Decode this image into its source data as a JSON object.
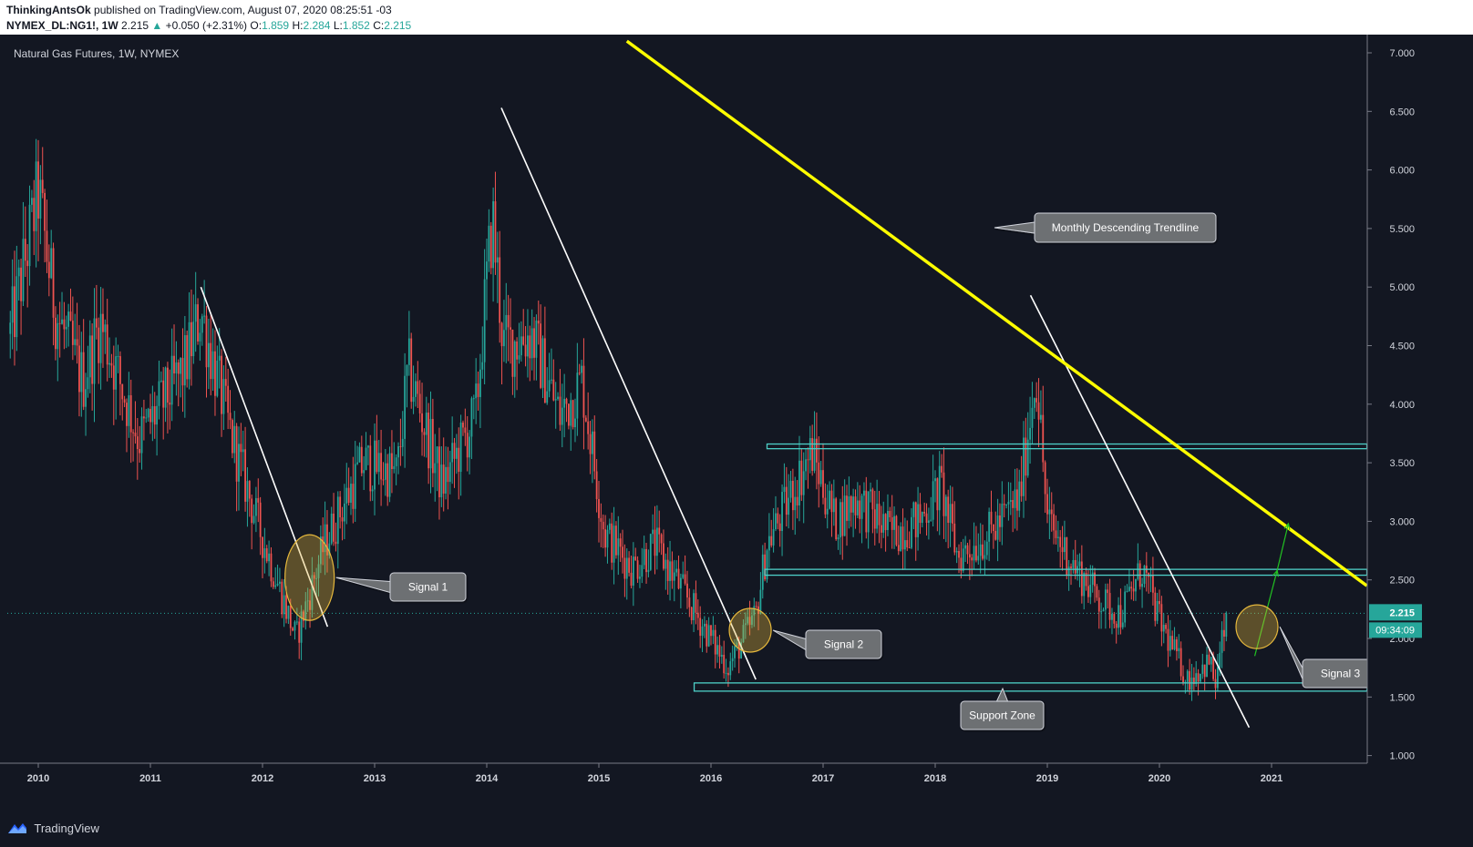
{
  "header": {
    "author": "ThinkingAntsOk",
    "published_text": "published on TradingView.com, August 07, 2020 08:25:51 -03",
    "symbol": "NYMEX_DL:NG1!, 1W",
    "last": "2.215",
    "change": "+0.050 (+2.31%)",
    "ohlc": {
      "o_label": "O:",
      "o": "1.859",
      "h_label": "H:",
      "h": "2.284",
      "l_label": "L:",
      "l": "1.852",
      "c_label": "C:",
      "c": "2.215"
    }
  },
  "footer": {
    "brand": "TradingView"
  },
  "colors": {
    "background": "#131722",
    "up": "#26a69a",
    "down": "#ef5350",
    "trendline": "#ffff00",
    "support_box": "#4dd0c8",
    "signal_fill": "#e6b83c",
    "arrow": "#22c322"
  },
  "chart_data": {
    "type": "candlestick",
    "title": "Natural Gas Futures, 1W, NYMEX",
    "x_ticks": [
      "2010",
      "2011",
      "2012",
      "2013",
      "2014",
      "2015",
      "2016",
      "2017",
      "2018",
      "2019",
      "2020",
      "2021"
    ],
    "y_ticks": [
      "7.000",
      "6.500",
      "6.000",
      "5.500",
      "5.000",
      "4.500",
      "4.000",
      "3.500",
      "3.000",
      "2.500",
      "2.000",
      "1.500",
      "1.000"
    ],
    "ylim": [
      0.92,
      7.12
    ],
    "last_price": 2.215,
    "last_price_label": "2.215",
    "countdown_label": "09:34:09",
    "approx_weekly_close_anchors": [
      {
        "t": 2009.75,
        "p": 4.6
      },
      {
        "t": 2010.0,
        "p": 5.8
      },
      {
        "t": 2010.15,
        "p": 4.8
      },
      {
        "t": 2010.4,
        "p": 4.2
      },
      {
        "t": 2010.55,
        "p": 4.7
      },
      {
        "t": 2010.9,
        "p": 3.7
      },
      {
        "t": 2011.3,
        "p": 4.3
      },
      {
        "t": 2011.45,
        "p": 4.8
      },
      {
        "t": 2011.7,
        "p": 3.8
      },
      {
        "t": 2011.95,
        "p": 3.0
      },
      {
        "t": 2012.3,
        "p": 2.0
      },
      {
        "t": 2012.55,
        "p": 2.8
      },
      {
        "t": 2012.9,
        "p": 3.5
      },
      {
        "t": 2013.2,
        "p": 3.4
      },
      {
        "t": 2013.3,
        "p": 4.3
      },
      {
        "t": 2013.6,
        "p": 3.3
      },
      {
        "t": 2013.9,
        "p": 3.9
      },
      {
        "t": 2014.05,
        "p": 5.6
      },
      {
        "t": 2014.15,
        "p": 4.5
      },
      {
        "t": 2014.4,
        "p": 4.6
      },
      {
        "t": 2014.65,
        "p": 3.9
      },
      {
        "t": 2014.85,
        "p": 4.2
      },
      {
        "t": 2015.05,
        "p": 2.9
      },
      {
        "t": 2015.3,
        "p": 2.6
      },
      {
        "t": 2015.5,
        "p": 2.8
      },
      {
        "t": 2015.75,
        "p": 2.4
      },
      {
        "t": 2016.15,
        "p": 1.75
      },
      {
        "t": 2016.4,
        "p": 2.2
      },
      {
        "t": 2016.5,
        "p": 2.8
      },
      {
        "t": 2016.9,
        "p": 3.6
      },
      {
        "t": 2017.1,
        "p": 3.0
      },
      {
        "t": 2017.3,
        "p": 3.2
      },
      {
        "t": 2017.6,
        "p": 2.9
      },
      {
        "t": 2017.85,
        "p": 3.0
      },
      {
        "t": 2018.05,
        "p": 3.3
      },
      {
        "t": 2018.2,
        "p": 2.7
      },
      {
        "t": 2018.5,
        "p": 2.9
      },
      {
        "t": 2018.75,
        "p": 3.2
      },
      {
        "t": 2018.9,
        "p": 4.3
      },
      {
        "t": 2019.0,
        "p": 3.0
      },
      {
        "t": 2019.25,
        "p": 2.6
      },
      {
        "t": 2019.5,
        "p": 2.3
      },
      {
        "t": 2019.65,
        "p": 2.2
      },
      {
        "t": 2019.85,
        "p": 2.6
      },
      {
        "t": 2020.0,
        "p": 2.15
      },
      {
        "t": 2020.25,
        "p": 1.65
      },
      {
        "t": 2020.45,
        "p": 1.8
      },
      {
        "t": 2020.5,
        "p": 1.6
      },
      {
        "t": 2020.6,
        "p": 2.215
      }
    ],
    "annotations": {
      "monthly_trendline": {
        "label": "Monthly Descending Trendline",
        "from": {
          "t": 2015.25,
          "p": 7.1
        },
        "to": {
          "t": 2021.85,
          "p": 2.45
        }
      },
      "white_trendlines": [
        {
          "from": {
            "t": 2011.45,
            "p": 5.0
          },
          "to": {
            "t": 2012.58,
            "p": 2.1
          }
        },
        {
          "from": {
            "t": 2014.13,
            "p": 6.53
          },
          "to": {
            "t": 2016.4,
            "p": 1.65
          }
        },
        {
          "from": {
            "t": 2018.85,
            "p": 4.93
          },
          "to": {
            "t": 2020.8,
            "p": 1.24
          }
        }
      ],
      "zones": [
        {
          "from": 2016.5,
          "to": 2021.85,
          "top": 3.66,
          "bottom": 3.62
        },
        {
          "from": 2016.48,
          "to": 2021.85,
          "top": 2.59,
          "bottom": 2.54
        },
        {
          "from": 2015.85,
          "to": 2021.85,
          "top": 1.62,
          "bottom": 1.55,
          "label": "Support Zone"
        }
      ],
      "signals": [
        {
          "label": "Signal 1",
          "t": 2012.42,
          "p": 2.52
        },
        {
          "label": "Signal 2",
          "t": 2016.35,
          "p": 2.07
        },
        {
          "label": "Signal 3",
          "t": 2020.87,
          "p": 2.1
        }
      ],
      "projection_arrows": [
        {
          "from": {
            "t": 2020.85,
            "p": 1.85
          },
          "to": {
            "t": 2021.05,
            "p": 2.58
          }
        },
        {
          "from": {
            "t": 2021.05,
            "p": 2.58
          },
          "to": {
            "t": 2021.15,
            "p": 2.98
          }
        }
      ]
    }
  }
}
